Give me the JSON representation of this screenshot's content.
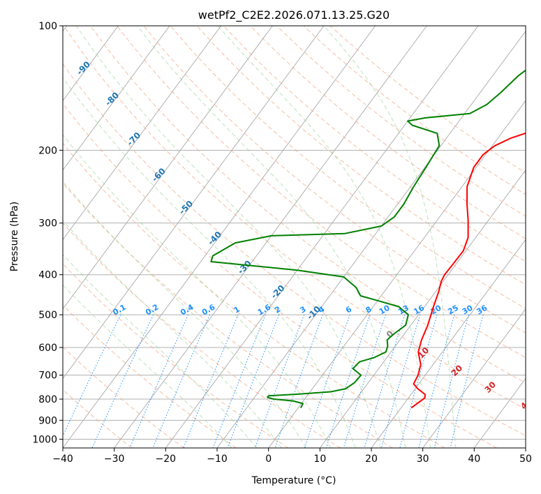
{
  "chart_data": {
    "type": "line",
    "title": "wetPf2_C2E2.2026.071.13.25.G20",
    "xlabel": "Temperature (°C)",
    "ylabel": "Pressure (hPa)",
    "xlim": [
      -40,
      50
    ],
    "ylim_hpa": [
      1050,
      100
    ],
    "x_ticks": [
      -40,
      -30,
      -20,
      -10,
      0,
      10,
      20,
      30,
      40,
      50
    ],
    "y_ticks": [
      100,
      200,
      300,
      400,
      500,
      600,
      700,
      800,
      900,
      1000
    ],
    "isotherms_c": [
      -100,
      -90,
      -80,
      -70,
      -60,
      -50,
      -40,
      -30,
      -20,
      -10,
      0,
      10,
      20,
      30,
      40,
      50
    ],
    "dry_adiabats_c": [
      -30,
      -20,
      -10,
      0,
      10,
      20,
      30,
      40,
      50,
      60,
      70,
      80,
      90,
      100,
      110,
      120,
      130,
      140,
      150,
      160
    ],
    "moist_adiabats_c": [
      -10,
      -5,
      0,
      5,
      10,
      15,
      20,
      25,
      30,
      35
    ],
    "mixing_ratio_lines_gkg": [
      "0.1",
      "0.2",
      "0.4",
      "0.6",
      "1",
      "1.6",
      "2",
      "3",
      "4",
      "6",
      "8",
      "10",
      "13",
      "16",
      "20",
      "25",
      "30",
      "36"
    ],
    "mixing_ratio_label_color": "#1e90ff",
    "isotherm_labels_skewed": [
      "-100",
      "-90",
      "-80",
      "-70",
      "-60",
      "-50",
      "-40",
      "-30",
      "-20",
      "-10"
    ],
    "isotherm_label_color": "#1f77b4",
    "wetbulb_labels": [
      "0",
      "10",
      "20",
      "30",
      "40"
    ],
    "wetbulb_zero_color": "#888888",
    "wetbulb_label_color": "#d62728",
    "series": [
      {
        "name": "Temperature",
        "color": "#ff0000",
        "points": [
          [
            22.0,
            840
          ],
          [
            22.5,
            820
          ],
          [
            23.2,
            795
          ],
          [
            22.8,
            780
          ],
          [
            20.5,
            755
          ],
          [
            19.0,
            735
          ],
          [
            18.6,
            700
          ],
          [
            17.6,
            660
          ],
          [
            15.3,
            615
          ],
          [
            14.2,
            575
          ],
          [
            13.3,
            530
          ],
          [
            11.8,
            480
          ],
          [
            10.6,
            440
          ],
          [
            9.6,
            415
          ],
          [
            9.3,
            400
          ],
          [
            9.4,
            380
          ],
          [
            9.5,
            350
          ],
          [
            8.5,
            325
          ],
          [
            6.0,
            295
          ],
          [
            3.5,
            270
          ],
          [
            1.0,
            245
          ],
          [
            -0.5,
            220
          ],
          [
            -0.5,
            205
          ],
          [
            0.5,
            195
          ],
          [
            2.5,
            187
          ],
          [
            5.5,
            180
          ],
          [
            7.0,
            170
          ],
          [
            7.2,
            160
          ],
          [
            6.8,
            150
          ],
          [
            7.5,
            140
          ],
          [
            8.5,
            132
          ],
          [
            8.8,
            125
          ],
          [
            9.0,
            115
          ],
          [
            9.4,
            108
          ],
          [
            9.8,
            100
          ]
        ]
      },
      {
        "name": "Dewpoint",
        "color": "#008000",
        "points": [
          [
            0.5,
            840
          ],
          [
            0.3,
            820
          ],
          [
            -2.0,
            808
          ],
          [
            -6.0,
            800
          ],
          [
            -7.5,
            792
          ],
          [
            -7.5,
            785
          ],
          [
            -2.0,
            778
          ],
          [
            4.0,
            768
          ],
          [
            6.5,
            755
          ],
          [
            7.3,
            730
          ],
          [
            7.5,
            700
          ],
          [
            5.0,
            675
          ],
          [
            5.3,
            650
          ],
          [
            7.5,
            635
          ],
          [
            9.0,
            615
          ],
          [
            8.5,
            595
          ],
          [
            7.5,
            575
          ],
          [
            8.0,
            555
          ],
          [
            9.0,
            530
          ],
          [
            8.0,
            500
          ],
          [
            5.0,
            478
          ],
          [
            0.0,
            462
          ],
          [
            -4.0,
            450
          ],
          [
            -6.0,
            430
          ],
          [
            -10.0,
            405
          ],
          [
            -20.0,
            390
          ],
          [
            -38.0,
            372
          ],
          [
            -38.5,
            360
          ],
          [
            -36.0,
            335
          ],
          [
            -30.0,
            322
          ],
          [
            -16.0,
            318
          ],
          [
            -10.0,
            305
          ],
          [
            -8.8,
            290
          ],
          [
            -8.8,
            270
          ],
          [
            -9.4,
            245
          ],
          [
            -9.8,
            220
          ],
          [
            -10.3,
            195
          ],
          [
            -12.5,
            182
          ],
          [
            -18.5,
            174
          ],
          [
            -20.0,
            170
          ],
          [
            -17.0,
            167
          ],
          [
            -9.0,
            163
          ],
          [
            -7.0,
            155
          ],
          [
            -6.0,
            145
          ],
          [
            -5.0,
            132
          ],
          [
            -3.0,
            120
          ],
          [
            -1.0,
            110
          ],
          [
            1.5,
            103
          ],
          [
            2.0,
            100
          ]
        ]
      }
    ]
  }
}
